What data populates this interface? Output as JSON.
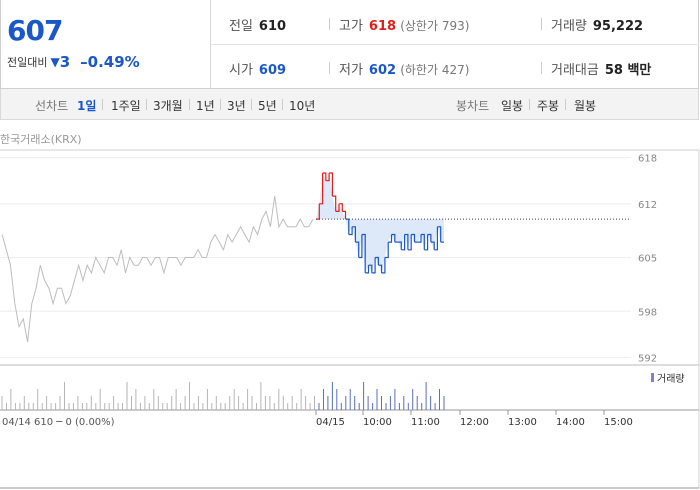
{
  "summary": {
    "price": "607",
    "change_label": "전일대비",
    "change_icon": "down-triangle-icon",
    "change_value": "3",
    "change_pct": "–0.49%"
  },
  "info": {
    "prev_label": "전일",
    "prev_value": "610",
    "high_label": "고가",
    "high_value": "618",
    "upper_limit": "(상한가 793)",
    "volume_label": "거래량",
    "volume_value": "95,222",
    "open_label": "시가",
    "open_value": "609",
    "low_label": "저가",
    "low_value": "602",
    "lower_limit": "(하한가 427)",
    "amount_label": "거래대금",
    "amount_value": "58 백만"
  },
  "tabs": {
    "line_label": "선차트",
    "line_items": [
      "1일",
      "1주일",
      "3개월",
      "1년",
      "3년",
      "5년",
      "10년"
    ],
    "candle_label": "봉차트",
    "candle_items": [
      "일봉",
      "주봉",
      "월봉"
    ]
  },
  "source": "한국거래소(KRX)",
  "colors": {
    "up": "#e0211b",
    "down": "#1a57c9",
    "prev_day": "#bdbdbd",
    "fill": "#d4e4f7"
  },
  "chart_data": {
    "type": "line",
    "y_ticks": [
      618,
      612,
      605,
      598,
      592
    ],
    "ylim": [
      591,
      619
    ],
    "reference_close": 610,
    "x_labels": [
      "04/15",
      "10:00",
      "11:00",
      "12:00",
      "13:00",
      "14:00",
      "15:00"
    ],
    "prev_day_label": "04/14  610 ─ 0 (0.00%)",
    "volume_legend": "거래량",
    "series": [
      {
        "values": [
          608,
          606,
          604,
          599,
          596,
          597,
          594,
          599,
          601,
          604,
          602,
          601,
          599,
          601,
          601,
          599,
          600,
          602,
          604,
          602,
          604,
          603,
          605,
          604,
          603,
          605,
          605,
          604,
          606,
          603,
          605,
          604,
          604,
          605,
          605,
          604,
          605,
          605,
          603,
          605,
          605,
          605,
          604,
          605,
          605,
          605,
          606,
          605,
          605,
          607,
          608,
          607,
          606,
          608,
          607,
          608,
          609,
          608,
          607,
          609,
          608,
          610,
          611,
          609,
          613,
          609,
          610,
          609,
          609,
          609,
          610,
          609,
          609,
          610
        ]
      },
      {
        "values": [
          610,
          612,
          616,
          615,
          616,
          613,
          611,
          612,
          611,
          610,
          608,
          609,
          607,
          605,
          608,
          603,
          604,
          603,
          605,
          604,
          603,
          605,
          607,
          608,
          607,
          607,
          606,
          608,
          606,
          608,
          607,
          607,
          608,
          606,
          608,
          607,
          606,
          609,
          607,
          607
        ]
      }
    ],
    "volume": [
      2,
      1,
      3,
      1,
      1,
      2,
      1,
      1,
      3,
      1,
      2,
      1,
      1,
      2,
      4,
      1,
      1,
      2,
      1,
      1,
      2,
      1,
      3,
      1,
      1,
      2,
      1,
      1,
      4,
      2,
      3,
      1,
      2,
      1,
      3,
      2,
      1,
      1,
      2,
      3,
      1,
      2,
      4,
      1,
      2,
      1,
      3,
      1,
      2,
      1,
      1,
      2,
      3,
      2,
      1,
      3,
      2,
      1,
      4,
      2,
      2,
      1,
      3,
      2,
      1,
      2,
      1,
      3,
      2,
      1,
      2,
      1,
      3,
      2,
      4,
      3,
      1,
      2,
      3,
      2,
      1,
      4,
      2,
      1,
      3,
      2,
      1,
      2,
      3,
      1,
      2,
      1,
      3,
      2,
      1,
      4,
      2,
      1,
      3,
      2
    ]
  }
}
